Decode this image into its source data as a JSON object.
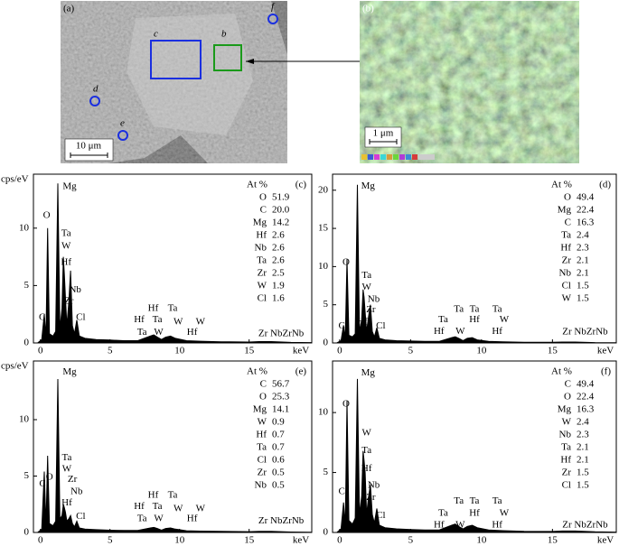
{
  "images": {
    "a": {
      "label": "(a)",
      "scale": "10 μm",
      "markers": [
        "c",
        "b",
        "d",
        "e",
        "f"
      ]
    },
    "b": {
      "label": "(b)",
      "scale": "1 μm"
    }
  },
  "chart_data": [
    {
      "type": "line",
      "panel": "(c)",
      "ylabel": "cps/eV",
      "xlabel": "keV",
      "color": "#000000",
      "xlim": [
        -0.5,
        19.5
      ],
      "xticks": [
        0,
        5,
        10,
        15
      ],
      "ylim": [
        0,
        14.7
      ],
      "yticks": [
        0,
        5,
        10
      ],
      "x": [
        -0.2,
        0.1,
        0.28,
        0.4,
        0.52,
        0.65,
        0.9,
        1.1,
        1.25,
        1.4,
        1.55,
        1.65,
        1.72,
        1.8,
        1.9,
        2.04,
        2.17,
        2.3,
        2.45,
        2.62,
        2.8,
        3.2,
        4,
        5,
        6,
        7,
        7.9,
        8.15,
        8.4,
        8.7,
        9.0,
        9.35,
        9.7,
        10.5,
        11.5,
        13,
        15,
        15.7,
        16.6,
        18,
        19.5
      ],
      "values": [
        0,
        0.3,
        2.5,
        0.5,
        10,
        0.8,
        0.6,
        1,
        13.9,
        1.2,
        3,
        7.5,
        6,
        4,
        1.5,
        3.5,
        6.3,
        1.5,
        0.8,
        2,
        0.6,
        0.4,
        0.3,
        0.25,
        0.2,
        0.2,
        0.6,
        0.7,
        0.5,
        0.3,
        0.5,
        0.6,
        0.4,
        0.2,
        0.15,
        0.1,
        0.08,
        0.12,
        0.12,
        0.05,
        0.03
      ],
      "composition": {
        "header": "At %",
        "elements": [
          "O",
          "C",
          "Mg",
          "Hf",
          "Nb",
          "Ta",
          "Zr",
          "W",
          "Cl"
        ],
        "values": [
          51.9,
          20.0,
          14.2,
          2.6,
          2.6,
          2.6,
          2.5,
          1.9,
          1.6
        ],
        "value_labels": [
          "51.9",
          "20.0",
          "14.2",
          "2.6",
          "2.6",
          "2.6",
          "2.5",
          "1.9",
          "1.6"
        ]
      },
      "annotations": [
        {
          "text": "Mg",
          "x": 2.1,
          "y": 13.6
        },
        {
          "text": "O",
          "x": 0.45,
          "y": 11.1
        },
        {
          "text": "Ta",
          "x": 1.85,
          "y": 9.5
        },
        {
          "text": "W",
          "x": 1.85,
          "y": 8.4
        },
        {
          "text": "Hf",
          "x": 1.85,
          "y": 7.0
        },
        {
          "text": "Nb",
          "x": 2.5,
          "y": 4.6
        },
        {
          "text": "Zr",
          "x": 2.05,
          "y": 3.6
        },
        {
          "text": "Cl",
          "x": 2.9,
          "y": 2.2
        },
        {
          "text": "C",
          "x": 0.13,
          "y": 2.2
        },
        {
          "text": "Hf",
          "x": 8.1,
          "y": 3.0
        },
        {
          "text": "Ta",
          "x": 9.5,
          "y": 3.0
        },
        {
          "text": "Hf",
          "x": 7.1,
          "y": 2.0
        },
        {
          "text": "Ta",
          "x": 8.4,
          "y": 2.0
        },
        {
          "text": "W",
          "x": 9.9,
          "y": 1.8
        },
        {
          "text": "W",
          "x": 11.5,
          "y": 1.8
        },
        {
          "text": "Ta",
          "x": 7.3,
          "y": 0.9
        },
        {
          "text": "W",
          "x": 8.5,
          "y": 0.9
        },
        {
          "text": "Hf",
          "x": 10.9,
          "y": 0.9
        },
        {
          "text": "Zr NbZrNb",
          "x": 17.3,
          "y": 0.8
        }
      ]
    },
    {
      "type": "line",
      "panel": "(d)",
      "xlabel": "keV",
      "color": "#000000",
      "xlim": [
        -0.5,
        19.5
      ],
      "xticks": [
        0,
        5,
        10,
        15
      ],
      "ylim": [
        0,
        22.1
      ],
      "yticks": [
        0,
        5,
        10,
        15,
        20
      ],
      "x": [
        -0.2,
        0.1,
        0.28,
        0.4,
        0.52,
        0.65,
        0.9,
        1.1,
        1.25,
        1.4,
        1.55,
        1.65,
        1.72,
        1.8,
        1.9,
        2.04,
        2.17,
        2.3,
        2.45,
        2.62,
        2.8,
        3.2,
        4,
        5,
        6,
        7,
        7.9,
        8.15,
        8.4,
        8.7,
        9.0,
        9.35,
        9.7,
        10.5,
        11.5,
        13,
        15,
        15.7,
        16.6,
        18,
        19.5
      ],
      "values": [
        0,
        0.3,
        2.3,
        0.6,
        11,
        1,
        0.8,
        1.2,
        20.7,
        1.5,
        3,
        7,
        6,
        4,
        1.5,
        3.5,
        5,
        1.5,
        0.8,
        2,
        0.6,
        0.4,
        0.3,
        0.25,
        0.2,
        0.2,
        0.7,
        0.8,
        0.6,
        0.3,
        0.6,
        0.7,
        0.4,
        0.2,
        0.15,
        0.1,
        0.08,
        0.12,
        0.12,
        0.05,
        0.03
      ],
      "composition": {
        "header": "At %",
        "elements": [
          "O",
          "Mg",
          "C",
          "Ta",
          "Hf",
          "Zr",
          "Nb",
          "Cl",
          "W"
        ],
        "values": [
          49.4,
          22.4,
          16.3,
          2.4,
          2.3,
          2.1,
          2.1,
          1.5,
          1.5
        ],
        "value_labels": [
          "49.4",
          "22.4",
          "16.3",
          "2.4",
          "2.3",
          "2.1",
          "2.1",
          "1.5",
          "1.5"
        ]
      },
      "annotations": [
        {
          "text": "Mg",
          "x": 2.0,
          "y": 20.5
        },
        {
          "text": "O",
          "x": 0.45,
          "y": 10.5
        },
        {
          "text": "Ta",
          "x": 1.9,
          "y": 8.8
        },
        {
          "text": "W",
          "x": 1.9,
          "y": 7.3
        },
        {
          "text": "Nb",
          "x": 2.4,
          "y": 5.7
        },
        {
          "text": "Zr",
          "x": 2.2,
          "y": 4.3
        },
        {
          "text": "Hf",
          "x": 1.6,
          "y": 2.7
        },
        {
          "text": "Cl",
          "x": 2.9,
          "y": 2.2
        },
        {
          "text": "C",
          "x": 0.15,
          "y": 2.2
        },
        {
          "text": "Ta",
          "x": 8.4,
          "y": 4.4
        },
        {
          "text": "Ta",
          "x": 9.5,
          "y": 4.4
        },
        {
          "text": "Ta",
          "x": 11.1,
          "y": 4.4
        },
        {
          "text": "Ta",
          "x": 7.3,
          "y": 3.0
        },
        {
          "text": "Hf",
          "x": 9.5,
          "y": 3.0
        },
        {
          "text": "W",
          "x": 11.6,
          "y": 3.0
        },
        {
          "text": "Hf",
          "x": 7.0,
          "y": 1.5
        },
        {
          "text": "W",
          "x": 8.5,
          "y": 1.5
        },
        {
          "text": "Hf",
          "x": 11.1,
          "y": 1.5
        },
        {
          "text": "Zr NbZrNb",
          "x": 17.3,
          "y": 1.4
        }
      ]
    },
    {
      "type": "line",
      "panel": "(e)",
      "ylabel": "cps/eV",
      "xlabel": "keV",
      "color": "#000000",
      "xlim": [
        -0.5,
        19.5
      ],
      "xticks": [
        0,
        5,
        10,
        15
      ],
      "ylim": [
        0,
        15.2
      ],
      "yticks": [
        0,
        5,
        10
      ],
      "x": [
        -0.2,
        0.1,
        0.28,
        0.4,
        0.52,
        0.65,
        0.9,
        1.1,
        1.25,
        1.4,
        1.55,
        1.65,
        1.72,
        1.8,
        1.9,
        2.04,
        2.17,
        2.3,
        2.45,
        2.62,
        2.8,
        3.2,
        4,
        5,
        6,
        7,
        7.9,
        8.15,
        8.4,
        8.7,
        9.0,
        9.35,
        9.7,
        10.5,
        11.5,
        13,
        15,
        15.7,
        16.6,
        18,
        19.5
      ],
      "values": [
        0,
        0.3,
        5.4,
        0.6,
        6.8,
        0.8,
        0.6,
        1,
        13.6,
        1.2,
        1.5,
        2.5,
        2.2,
        1.8,
        1,
        1.2,
        1.5,
        0.8,
        0.5,
        1,
        0.4,
        0.3,
        0.25,
        0.2,
        0.18,
        0.18,
        0.4,
        0.45,
        0.35,
        0.2,
        0.35,
        0.4,
        0.3,
        0.15,
        0.12,
        0.1,
        0.07,
        0.1,
        0.1,
        0.04,
        0.02
      ],
      "composition": {
        "header": "At %",
        "elements": [
          "C",
          "O",
          "Mg",
          "W",
          "Hf",
          "Ta",
          "Cl",
          "Zr",
          "Nb"
        ],
        "values": [
          56.7,
          25.3,
          14.1,
          0.9,
          0.7,
          0.7,
          0.6,
          0.5,
          0.5
        ],
        "value_labels": [
          "56.7",
          "25.3",
          "14.1",
          "0.9",
          "0.7",
          "0.7",
          "0.6",
          "0.5",
          "0.5"
        ]
      },
      "annotations": [
        {
          "text": "Mg",
          "x": 2.1,
          "y": 14.2
        },
        {
          "text": "C",
          "x": 0.15,
          "y": 4.3
        },
        {
          "text": "O",
          "x": 0.65,
          "y": 4.9
        },
        {
          "text": "Ta",
          "x": 1.9,
          "y": 6.6
        },
        {
          "text": "W",
          "x": 1.9,
          "y": 5.6
        },
        {
          "text": "Zr",
          "x": 2.3,
          "y": 4.7
        },
        {
          "text": "Nb",
          "x": 2.6,
          "y": 3.6
        },
        {
          "text": "Hf",
          "x": 1.9,
          "y": 2.6
        },
        {
          "text": "Cl",
          "x": 2.9,
          "y": 1.4
        },
        {
          "text": "Hf",
          "x": 8.1,
          "y": 3.3
        },
        {
          "text": "Ta",
          "x": 9.5,
          "y": 3.3
        },
        {
          "text": "Hf",
          "x": 7.1,
          "y": 2.3
        },
        {
          "text": "Ta",
          "x": 8.4,
          "y": 2.3
        },
        {
          "text": "W",
          "x": 9.9,
          "y": 2.1
        },
        {
          "text": "W",
          "x": 11.5,
          "y": 2.1
        },
        {
          "text": "Ta",
          "x": 7.3,
          "y": 1.2
        },
        {
          "text": "W",
          "x": 8.5,
          "y": 1.2
        },
        {
          "text": "Hf",
          "x": 10.9,
          "y": 1.2
        },
        {
          "text": "Zr NbZrNb",
          "x": 17.3,
          "y": 1.0
        }
      ]
    },
    {
      "type": "line",
      "panel": "(f)",
      "xlabel": "keV",
      "color": "#000000",
      "xlim": [
        -0.5,
        19.5
      ],
      "xticks": [
        0,
        5,
        10,
        15
      ],
      "ylim": [
        0,
        14.3
      ],
      "yticks": [
        0,
        5,
        10
      ],
      "x": [
        -0.2,
        0.1,
        0.28,
        0.4,
        0.52,
        0.65,
        0.9,
        1.1,
        1.25,
        1.4,
        1.55,
        1.65,
        1.72,
        1.8,
        1.9,
        2.04,
        2.17,
        2.3,
        2.45,
        2.62,
        2.8,
        3.2,
        4,
        5,
        6,
        7,
        7.9,
        8.15,
        8.4,
        8.7,
        9.0,
        9.35,
        9.7,
        10.5,
        11.5,
        13,
        15,
        15.7,
        16.6,
        18,
        19.5
      ],
      "values": [
        0,
        0.3,
        2.5,
        0.6,
        11,
        1,
        0.7,
        1.2,
        12.8,
        1.5,
        3,
        6.8,
        6,
        5,
        1.5,
        3,
        4,
        1.5,
        0.8,
        2,
        0.6,
        0.4,
        0.3,
        0.25,
        0.2,
        0.2,
        0.6,
        0.7,
        0.5,
        0.3,
        0.5,
        0.6,
        0.4,
        0.2,
        0.15,
        0.1,
        0.08,
        0.12,
        0.12,
        0.05,
        0.03
      ],
      "composition": {
        "header": "At %",
        "elements": [
          "C",
          "O",
          "Mg",
          "W",
          "Nb",
          "Ta",
          "Hf",
          "Zr",
          "Cl"
        ],
        "values": [
          49.4,
          22.4,
          16.3,
          2.4,
          2.3,
          2.1,
          2.1,
          1.5,
          1.5
        ],
        "value_labels": [
          "49.4",
          "22.4",
          "16.3",
          "2.4",
          "2.3",
          "2.1",
          "2.1",
          "1.5",
          "1.5"
        ]
      },
      "annotations": [
        {
          "text": "Mg",
          "x": 2.0,
          "y": 13.3
        },
        {
          "text": "O",
          "x": 0.45,
          "y": 10.7
        },
        {
          "text": "W",
          "x": 1.9,
          "y": 8.3
        },
        {
          "text": "Ta",
          "x": 1.9,
          "y": 6.8
        },
        {
          "text": "Hf",
          "x": 1.9,
          "y": 5.3
        },
        {
          "text": "Nb",
          "x": 2.4,
          "y": 3.9
        },
        {
          "text": "Zr",
          "x": 2.2,
          "y": 2.9
        },
        {
          "text": "Cl",
          "x": 2.9,
          "y": 1.4
        },
        {
          "text": "C",
          "x": 0.15,
          "y": 3.4
        },
        {
          "text": "Ta",
          "x": 8.4,
          "y": 2.6
        },
        {
          "text": "Ta",
          "x": 9.5,
          "y": 2.6
        },
        {
          "text": "Ta",
          "x": 11.1,
          "y": 2.6
        },
        {
          "text": "Ta",
          "x": 7.3,
          "y": 1.6
        },
        {
          "text": "Hf",
          "x": 9.5,
          "y": 1.6
        },
        {
          "text": "W",
          "x": 11.6,
          "y": 1.6
        },
        {
          "text": "Hf",
          "x": 7.0,
          "y": 0.6
        },
        {
          "text": "W",
          "x": 8.5,
          "y": 0.6
        },
        {
          "text": "Hf",
          "x": 11.1,
          "y": 0.6
        },
        {
          "text": "Zr NbZrNb",
          "x": 17.3,
          "y": 0.6
        }
      ]
    }
  ]
}
